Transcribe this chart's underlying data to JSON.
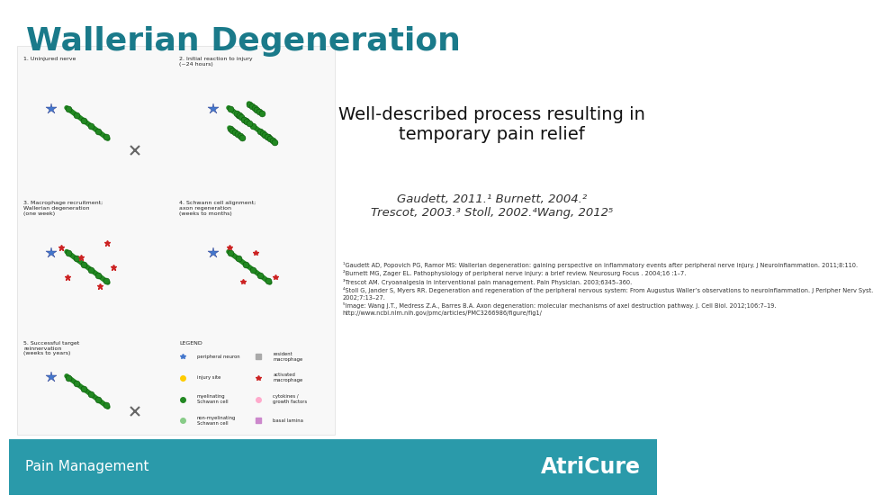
{
  "title": "Wallerian Degeneration",
  "title_color": "#1a7a8a",
  "title_fontsize": 26,
  "main_text": "Well-described process resulting in\ntemporary pain relief",
  "main_text_fontsize": 14,
  "main_text_color": "#111111",
  "citation_line1": "Gaudett, 2011.¹ Burnett, 2004.²",
  "citation_line2": "Trescot, 2003.³ Stoll, 2002.⁴Wang, 2012⁵",
  "citation_fontsize": 9.5,
  "citation_color": "#333333",
  "ref_text": "¹Gaudett AD, Popovich PG, Ramor MS: Wallerian degeneration: gaining perspective on inflammatory events after peripheral nerve injury. J Neuroinflammation. 2011;8:110.\n²Burnett MG, Zager EL. Pathophysiology of peripheral nerve injury: a brief review. Neurosurg Focus . 2004;16 :1–7.\n³Trescot AM. Cryoanalgesia in interventional pain management. Pain Physician. 2003;6345–360.\n⁴Stoll G, Jander S, Myers RR. Degeneration and regeneration of the peripheral nervous system: From Augustus Waller’s observations to neuroinflammation. J Peripher Nerv Syst.\n2002;7:13–27.\n⁵Image: Wang J.T., Medress Z.A., Barres B.A. Axon degeneration: molecular mechanisms of axel destruction pathway. J. Cell Biol. 2012;106:7–19.\nhttp://www.ncbi.nlm.nih.gov/pmc/articles/PMC3266986/figure/fig1/",
  "ref_fontsize": 4.8,
  "ref_color": "#333333",
  "footer_bg_color": "#2a9aaa",
  "footer_text_left": "Pain Management",
  "footer_text_right": "AtriCure",
  "footer_text_color": "#ffffff",
  "footer_fontsize": 11,
  "footer_brand_fontsize": 17,
  "background_color": "#ffffff",
  "image_area_color": "#f8f8f8",
  "panel_labels": [
    "1. Uninjured nerve",
    "2. Initial reaction to injury\n(~24 hours)",
    "3. Macrophage recruitment;\nWallerian degeneration\n(one week)",
    "4. Schwann cell alignment;\naxon regeneration\n(weeks to months)",
    "5. Successful target\nreinnervation\n(weeks to years)",
    "LEGEND"
  ]
}
